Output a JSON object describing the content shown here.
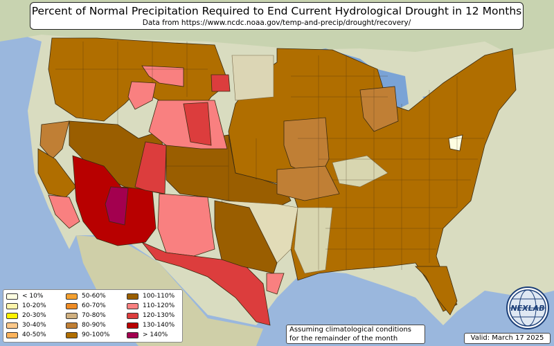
{
  "title": {
    "main": "Percent of Normal Precipitation Required to End Current Hydrological Drought in 12 Months",
    "source": "Data from https://www.ncdc.noaa.gov/temp-and-precip/drought/recovery/"
  },
  "legend": {
    "items": [
      {
        "label": "< 10%",
        "color": "#fefee2"
      },
      {
        "label": "10-20%",
        "color": "#fdf5ad"
      },
      {
        "label": "20-30%",
        "color": "#fff200"
      },
      {
        "label": "30-40%",
        "color": "#fcc98b"
      },
      {
        "label": "40-50%",
        "color": "#fdb45c"
      },
      {
        "label": "50-60%",
        "color": "#f4a02f"
      },
      {
        "label": "60-70%",
        "color": "#ef8c25"
      },
      {
        "label": "70-80%",
        "color": "#d0b080"
      },
      {
        "label": "80-90%",
        "color": "#c07f35"
      },
      {
        "label": "90-100%",
        "color": "#b06e00"
      },
      {
        "label": "100-110%",
        "color": "#9a5e00"
      },
      {
        "label": "110-120%",
        "color": "#f98080"
      },
      {
        "label": "120-130%",
        "color": "#dc3d3d"
      },
      {
        "label": "130-140%",
        "color": "#b80000"
      },
      {
        "label": "> 140%",
        "color": "#a3004f"
      }
    ]
  },
  "footnote": {
    "line1": "Assuming climatological conditions",
    "line2": "for the remainder of the month"
  },
  "valid": "Valid: March 17 2025",
  "logo": {
    "text": "NEXLAB",
    "icon": "globe-logo-icon"
  },
  "colors": {
    "ocean": "#9ab7dd",
    "land": "#d9dcc0",
    "lakes": "#7aa3d6"
  }
}
